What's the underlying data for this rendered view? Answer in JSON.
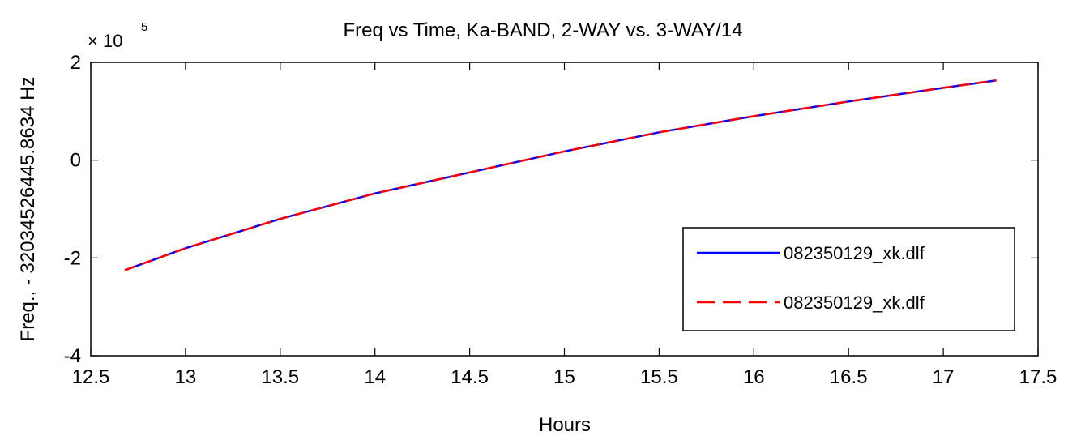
{
  "chart_data": {
    "type": "line",
    "title": "Freq vs Time, Ka-BAND,   2-WAY  vs. 3-WAY/14",
    "xlabel": "Hours",
    "ylabel": "Freq., - 32034526445.8634 Hz",
    "y_multiplier": {
      "base": "× 10",
      "exponent": "5"
    },
    "xlim": [
      12.5,
      17.5
    ],
    "ylim": [
      -4,
      2
    ],
    "x_ticks": [
      12.5,
      13,
      13.5,
      14,
      14.5,
      15,
      15.5,
      16,
      16.5,
      17,
      17.5
    ],
    "y_ticks": [
      -4,
      -2,
      0,
      2
    ],
    "x_tick_labels": [
      "12.5",
      "13",
      "13.5",
      "14",
      "14.5",
      "15",
      "15.5",
      "16",
      "16.5",
      "17",
      "17.5"
    ],
    "y_tick_labels": [
      "-4",
      "-2",
      "0",
      "2"
    ],
    "grid": false,
    "legend_position": "lower-right",
    "series": [
      {
        "name": "082350129_xk.dlf",
        "color": "#0000ff",
        "dash": "solid",
        "x": [
          12.68,
          13.0,
          13.5,
          14.0,
          14.5,
          15.0,
          15.5,
          16.0,
          16.5,
          17.0,
          17.28
        ],
        "y": [
          -2.25,
          -1.8,
          -1.2,
          -0.68,
          -0.25,
          0.18,
          0.57,
          0.9,
          1.2,
          1.48,
          1.63
        ]
      },
      {
        "name": "082350129_xk.dlf",
        "color": "#ff0000",
        "dash": "dashed",
        "x": [
          12.68,
          13.0,
          13.5,
          14.0,
          14.5,
          15.0,
          15.5,
          16.0,
          16.5,
          17.0,
          17.28
        ],
        "y": [
          -2.25,
          -1.8,
          -1.2,
          -0.68,
          -0.25,
          0.18,
          0.57,
          0.9,
          1.2,
          1.48,
          1.63
        ]
      }
    ]
  }
}
